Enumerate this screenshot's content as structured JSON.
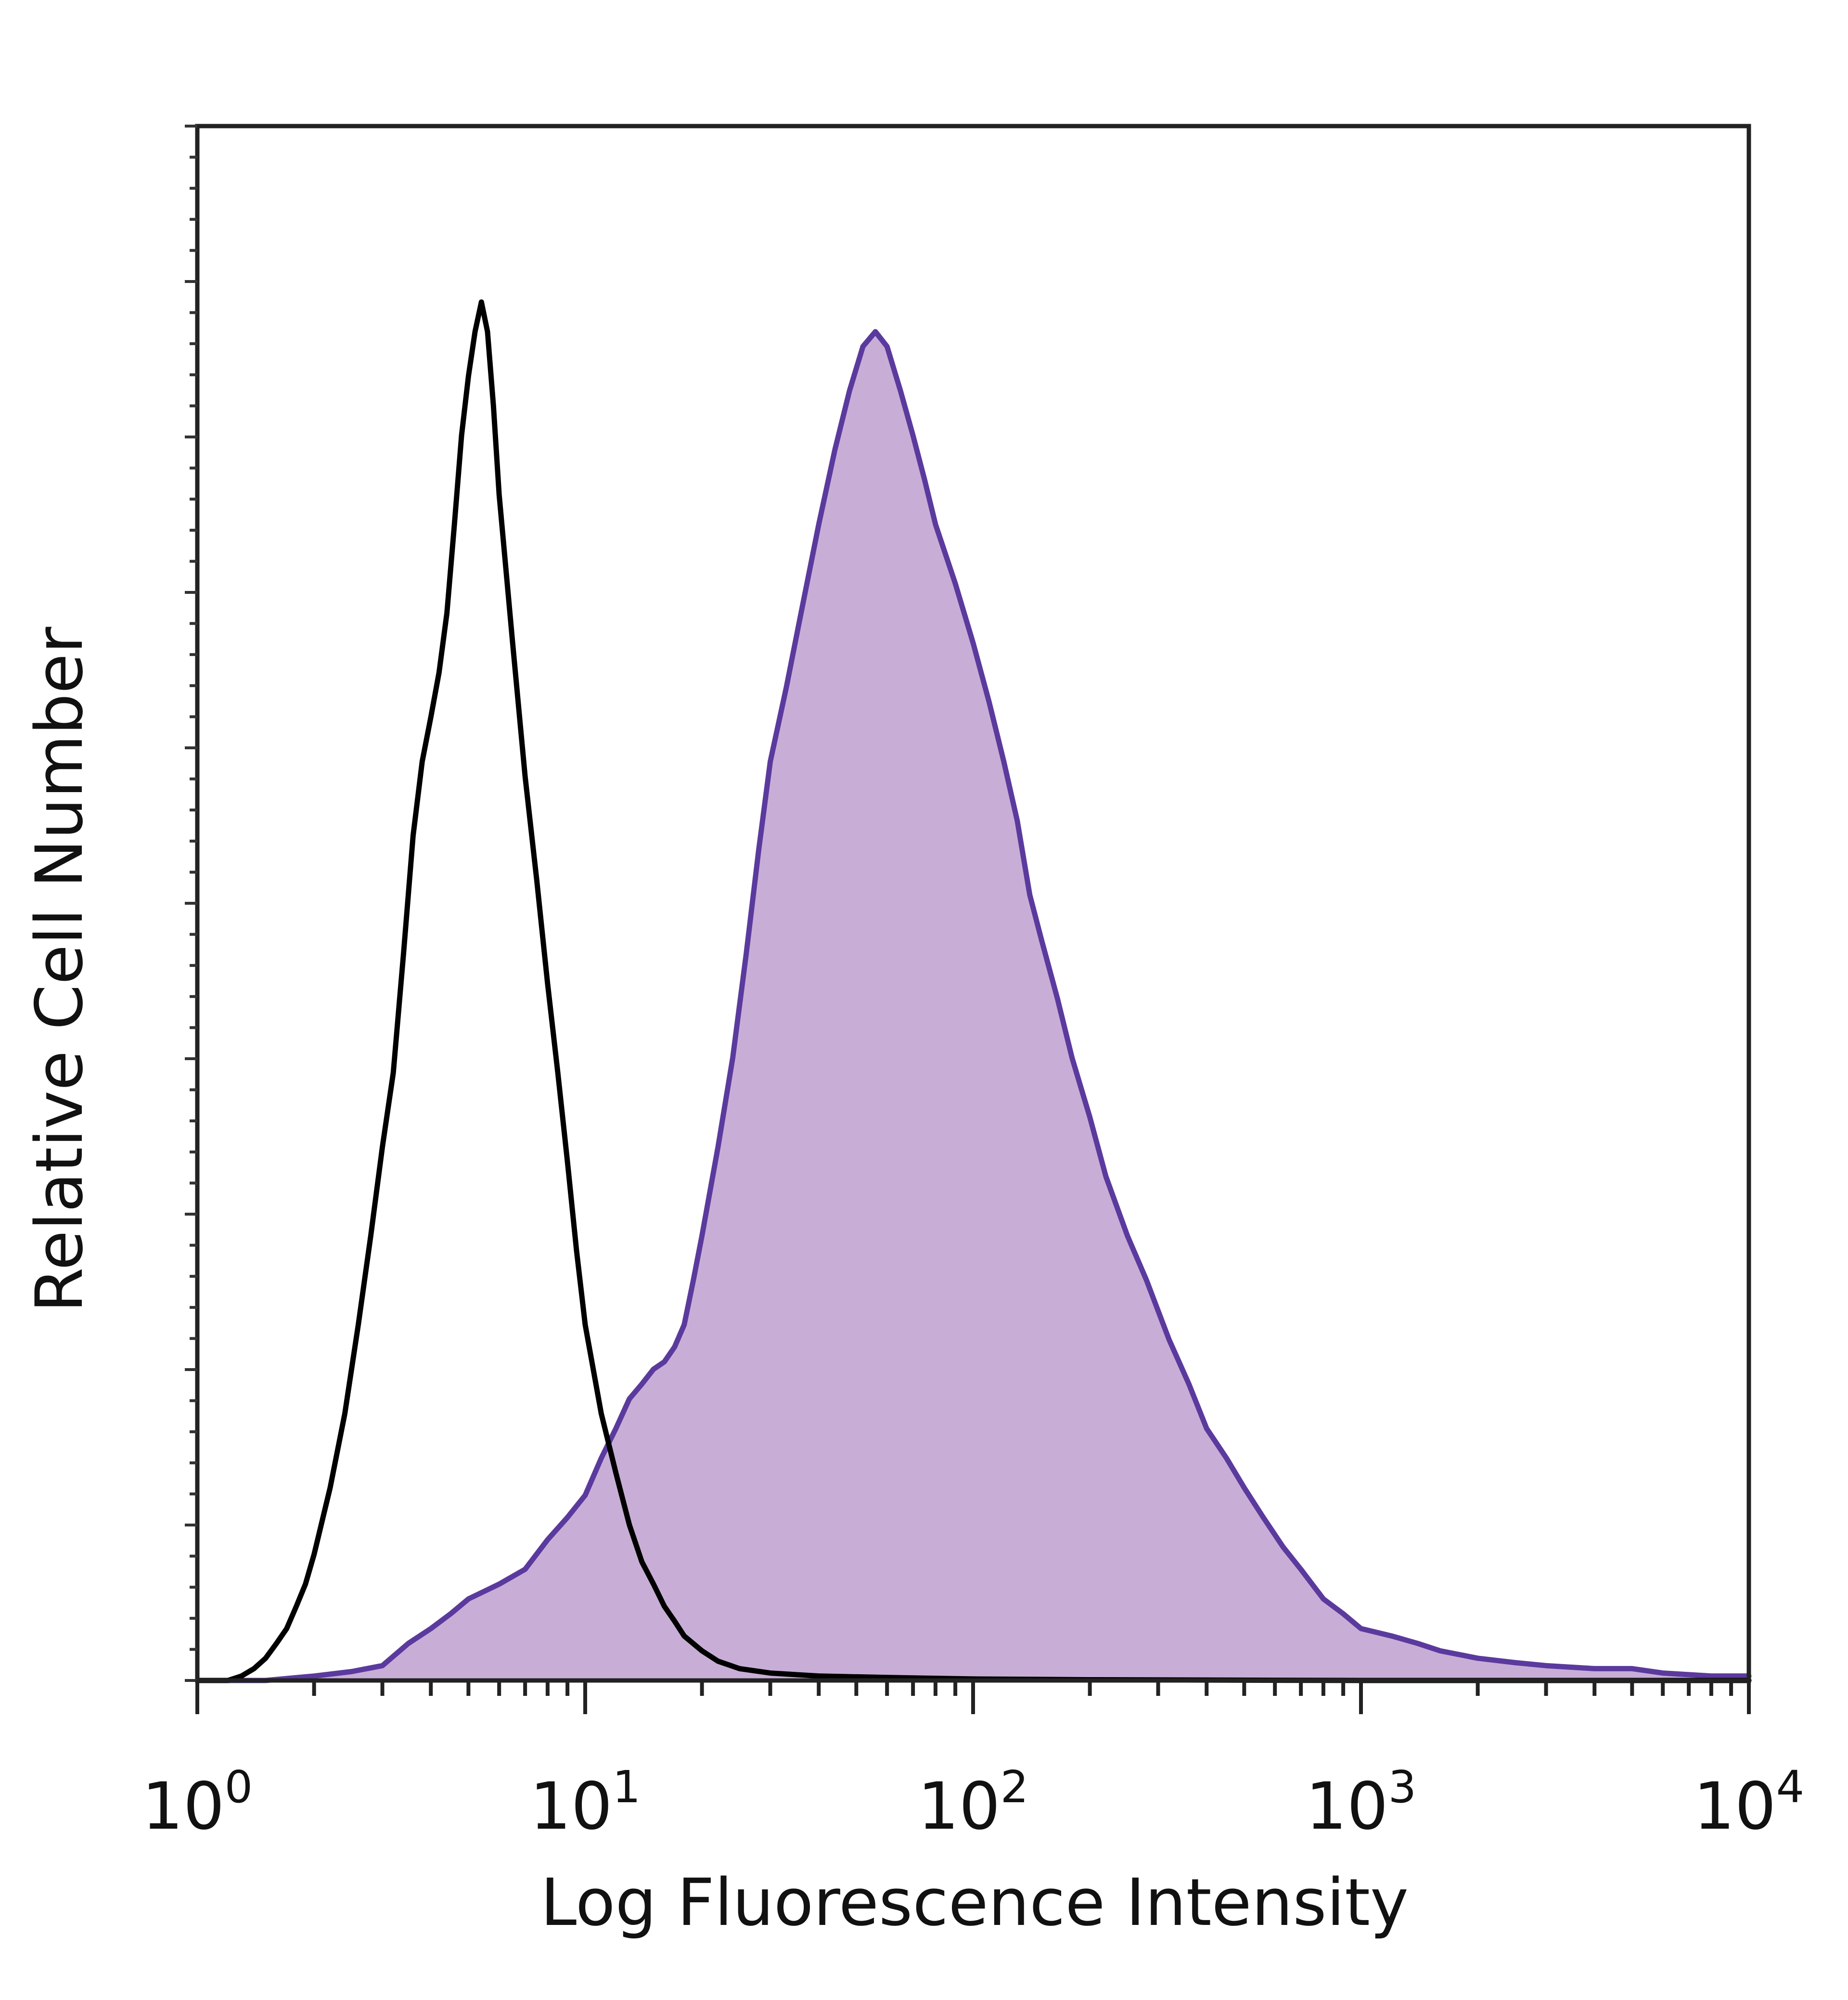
{
  "chart_data": {
    "type": "area",
    "xlabel": "Log Fluorescence Intensity",
    "ylabel": "Relative Cell Number",
    "x_scale": "log",
    "xlim": [
      1,
      10000
    ],
    "ylim": [
      0,
      100
    ],
    "x_ticks": [
      {
        "base": "10",
        "exp": "0",
        "value": 1
      },
      {
        "base": "10",
        "exp": "1",
        "value": 10
      },
      {
        "base": "10",
        "exp": "2",
        "value": 100
      },
      {
        "base": "10",
        "exp": "3",
        "value": 1000
      },
      {
        "base": "10",
        "exp": "4",
        "value": 10000
      }
    ],
    "grid": false,
    "legend": "none",
    "series": [
      {
        "style": "filled",
        "fill_color": "#c8aed6",
        "line_color": "#5b3a9e",
        "points": [
          [
            1,
            0
          ],
          [
            1.5,
            0
          ],
          [
            2,
            0.3
          ],
          [
            2.5,
            0.6
          ],
          [
            3,
            1.0
          ],
          [
            3.5,
            2.5
          ],
          [
            4,
            3.5
          ],
          [
            4.5,
            4.5
          ],
          [
            5,
            5.5
          ],
          [
            6,
            6.5
          ],
          [
            7,
            7.5
          ],
          [
            8,
            9.5
          ],
          [
            9,
            11
          ],
          [
            10,
            12.5
          ],
          [
            11,
            15
          ],
          [
            12,
            17
          ],
          [
            13,
            19
          ],
          [
            14,
            20
          ],
          [
            15,
            21
          ],
          [
            16,
            21.5
          ],
          [
            17,
            22.5
          ],
          [
            18,
            24
          ],
          [
            19,
            27
          ],
          [
            20,
            30
          ],
          [
            22,
            36
          ],
          [
            24,
            42
          ],
          [
            26,
            49
          ],
          [
            28,
            56
          ],
          [
            30,
            62
          ],
          [
            33,
            67
          ],
          [
            36,
            72
          ],
          [
            40,
            78
          ],
          [
            44,
            83
          ],
          [
            48,
            87
          ],
          [
            52,
            90
          ],
          [
            56,
            91
          ],
          [
            60,
            90
          ],
          [
            65,
            87
          ],
          [
            70,
            84
          ],
          [
            75,
            81
          ],
          [
            80,
            78
          ],
          [
            90,
            74
          ],
          [
            100,
            70
          ],
          [
            110,
            66
          ],
          [
            120,
            62
          ],
          [
            130,
            58
          ],
          [
            140,
            53
          ],
          [
            150,
            50
          ],
          [
            165,
            46
          ],
          [
            180,
            42
          ],
          [
            200,
            38
          ],
          [
            220,
            34
          ],
          [
            250,
            30
          ],
          [
            280,
            27
          ],
          [
            320,
            23
          ],
          [
            360,
            20
          ],
          [
            400,
            17
          ],
          [
            450,
            15
          ],
          [
            500,
            13
          ],
          [
            560,
            11
          ],
          [
            630,
            9
          ],
          [
            700,
            7.5
          ],
          [
            800,
            5.5
          ],
          [
            900,
            4.5
          ],
          [
            1000,
            3.5
          ],
          [
            1200,
            3
          ],
          [
            1400,
            2.5
          ],
          [
            1600,
            2
          ],
          [
            2000,
            1.5
          ],
          [
            2500,
            1.2
          ],
          [
            3000,
            1.0
          ],
          [
            4000,
            0.8
          ],
          [
            5000,
            0.8
          ],
          [
            6000,
            0.5
          ],
          [
            8000,
            0.3
          ],
          [
            10000,
            0.3
          ]
        ]
      },
      {
        "style": "line",
        "line_color": "#000000",
        "points": [
          [
            1,
            0
          ],
          [
            1.2,
            0
          ],
          [
            1.3,
            0.3
          ],
          [
            1.4,
            0.8
          ],
          [
            1.5,
            1.5
          ],
          [
            1.6,
            2.5
          ],
          [
            1.7,
            3.5
          ],
          [
            1.8,
            5
          ],
          [
            1.9,
            6.5
          ],
          [
            2,
            8.5
          ],
          [
            2.2,
            13
          ],
          [
            2.4,
            18
          ],
          [
            2.6,
            24
          ],
          [
            2.8,
            30
          ],
          [
            3,
            36
          ],
          [
            3.2,
            41
          ],
          [
            3.4,
            49
          ],
          [
            3.6,
            57
          ],
          [
            3.8,
            62
          ],
          [
            4,
            65
          ],
          [
            4.2,
            68
          ],
          [
            4.4,
            72
          ],
          [
            4.6,
            78
          ],
          [
            4.8,
            84
          ],
          [
            5,
            88
          ],
          [
            5.2,
            91
          ],
          [
            5.4,
            93
          ],
          [
            5.6,
            91
          ],
          [
            5.8,
            86
          ],
          [
            6,
            80
          ],
          [
            6.5,
            70
          ],
          [
            7,
            61
          ],
          [
            7.5,
            54
          ],
          [
            8,
            47
          ],
          [
            8.5,
            41
          ],
          [
            9,
            35
          ],
          [
            9.5,
            29
          ],
          [
            10,
            24
          ],
          [
            11,
            18
          ],
          [
            12,
            14
          ],
          [
            13,
            10.5
          ],
          [
            14,
            8
          ],
          [
            15,
            6.5
          ],
          [
            16,
            5
          ],
          [
            17,
            4
          ],
          [
            18,
            3
          ],
          [
            20,
            2
          ],
          [
            22,
            1.3
          ],
          [
            25,
            0.8
          ],
          [
            30,
            0.5
          ],
          [
            40,
            0.3
          ],
          [
            60,
            0.2
          ],
          [
            100,
            0.1
          ],
          [
            200,
            0.05
          ],
          [
            1000,
            0
          ],
          [
            10000,
            0
          ]
        ]
      }
    ]
  }
}
